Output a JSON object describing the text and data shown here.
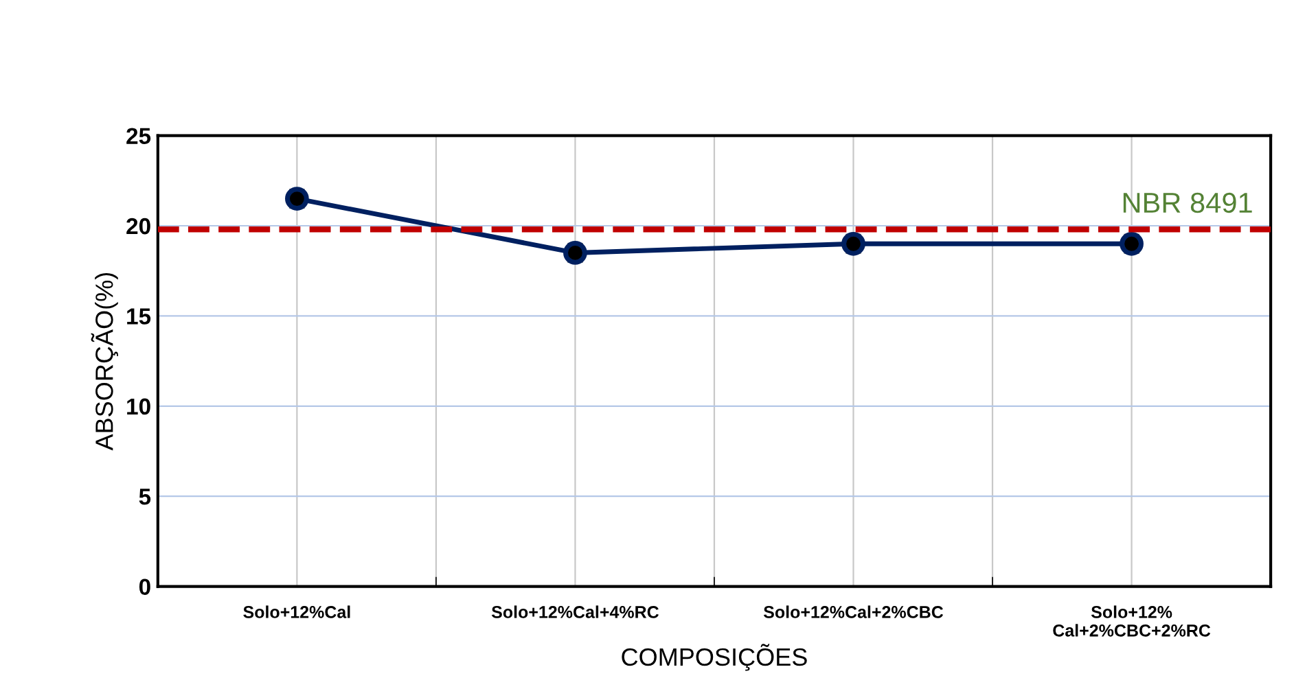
{
  "chart_data": {
    "type": "line",
    "xlabel": "COMPOSIÇÕES",
    "ylabel": "ABSORÇÃO(%)",
    "categories": [
      "Solo+12%Cal",
      "Solo+12%Cal+4%RC",
      "Solo+12%Cal+2%CBC",
      "Solo+12%\nCal+2%CBC+2%RC"
    ],
    "series": [
      {
        "color": "#002060",
        "values": [
          21.5,
          18.5,
          19.0,
          19.0
        ],
        "errors": [
          0.5,
          0.5,
          0.5,
          0.5
        ]
      }
    ],
    "ylim": [
      0,
      25
    ],
    "yticks": [
      0,
      5,
      10,
      15,
      20,
      25
    ],
    "grid": true,
    "marker": "circle",
    "line_style": "solid",
    "legend": false,
    "ref_lines": [
      {
        "axis": "y",
        "value": 19.8,
        "label": "NBR 8491",
        "color": "#c00000",
        "line_style": "dashed"
      }
    ]
  }
}
